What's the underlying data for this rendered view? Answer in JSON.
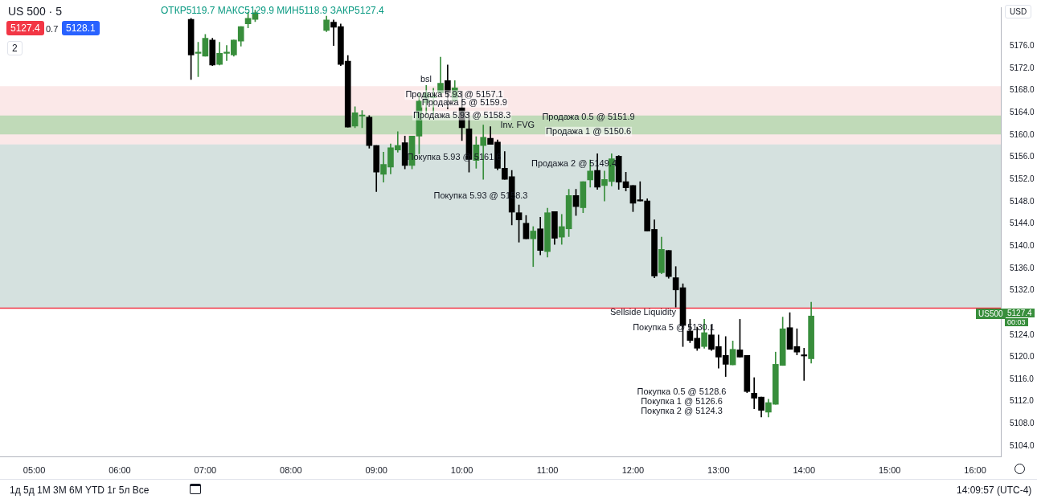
{
  "chart_data": {
    "type": "candlestick",
    "title": "US 500 · 5",
    "x": [
      6.8333,
      6.9167,
      7,
      7.0833,
      7.1667,
      7.25,
      7.3333,
      7.4167,
      7.5,
      7.5833,
      8.4167,
      8.5,
      8.5833,
      8.6667,
      8.75,
      8.8333,
      8.9167,
      9,
      9.0833,
      9.1667,
      9.25,
      9.3333,
      9.4167,
      9.5,
      9.5833,
      9.6667,
      9.75,
      9.8333,
      9.9167,
      10,
      10.0833,
      10.1667,
      10.25,
      10.3333,
      10.4167,
      10.5,
      10.5833,
      10.6667,
      10.75,
      10.8333,
      10.9167,
      11,
      11.0833,
      11.1667,
      11.25,
      11.3333,
      11.4167,
      11.5,
      11.5833,
      11.6667,
      11.75,
      11.8333,
      11.9167,
      12,
      12.0833,
      12.1667,
      12.25,
      12.3333,
      12.4167,
      12.5,
      12.5833,
      12.6667,
      12.75,
      12.8333,
      12.9167,
      13,
      13.0833,
      13.1667,
      13.25,
      13.3333,
      13.4167,
      13.5,
      13.5833,
      13.6667,
      13.75,
      13.8333,
      13.9167,
      14,
      14.0833
    ],
    "ohlc": [
      [
        5180.8,
        5181.0,
        5170.0,
        5174.4
      ],
      [
        5174.7,
        5176.7,
        5170.5,
        5174.7
      ],
      [
        5174.2,
        5178.1,
        5174.2,
        5177.4
      ],
      [
        5177.1,
        5177.4,
        5172.5,
        5172.6
      ],
      [
        5172.7,
        5176.7,
        5172.6,
        5174.7
      ],
      [
        5174.7,
        5176.1,
        5173.4,
        5174.7
      ],
      [
        5174.4,
        5177.1,
        5174.2,
        5177.1
      ],
      [
        5176.9,
        5179.5,
        5176.0,
        5179.5
      ],
      [
        5180.0,
        5182.1,
        5179.3,
        5181.0
      ],
      [
        5180.8,
        5182.5,
        5180.4,
        5182.0
      ],
      [
        5178.8,
        5181.4,
        5178.6,
        5180.7
      ],
      [
        5180.3,
        5180.7,
        5176.1,
        5179.4
      ],
      [
        5179.5,
        5180.0,
        5172.5,
        5172.7
      ],
      [
        5173.3,
        5174.3,
        5161.4,
        5161.4
      ],
      [
        5161.6,
        5165.1,
        5161.3,
        5164.0
      ],
      [
        5163.4,
        5164.4,
        5161.3,
        5163.4
      ],
      [
        5163.2,
        5163.5,
        5157.6,
        5158.1
      ],
      [
        5158.1,
        5158.1,
        5149.8,
        5153.3
      ],
      [
        5152.9,
        5156.9,
        5151.5,
        5154.7
      ],
      [
        5154.2,
        5158.4,
        5153.0,
        5157.7
      ],
      [
        5157.3,
        5160.6,
        5156.9,
        5158.1
      ],
      [
        5158.6,
        5159.8,
        5153.9,
        5154.5
      ],
      [
        5154.5,
        5159.8,
        5153.9,
        5159.8
      ],
      [
        5159.8,
        5167.5,
        5156.6,
        5166.1
      ],
      [
        5165.8,
        5168.9,
        5163.7,
        5167.6
      ],
      [
        5166.7,
        5168.4,
        5163.7,
        5167.0
      ],
      [
        5167.6,
        5174.0,
        5167.0,
        5169.3
      ],
      [
        5169.8,
        5172.6,
        5164.7,
        5167.6
      ],
      [
        5166.2,
        5169.8,
        5166.0,
        5168.5
      ],
      [
        5164.9,
        5167.9,
        5159.0,
        5161.3
      ],
      [
        5161.1,
        5164.1,
        5153.3,
        5155.6
      ],
      [
        5155.4,
        5159.7,
        5154.0,
        5158.2
      ],
      [
        5158.1,
        5161.8,
        5152.0,
        5159.6
      ],
      [
        5159.4,
        5161.5,
        5158.3,
        5158.3
      ],
      [
        5158.7,
        5159.1,
        5153.7,
        5154.0
      ],
      [
        5154.0,
        5157.0,
        5152.0,
        5152.0
      ],
      [
        5152.5,
        5153.6,
        5143.8,
        5146.1
      ],
      [
        5146.0,
        5147.4,
        5140.7,
        5144.7
      ],
      [
        5144.1,
        5145.5,
        5141.3,
        5141.3
      ],
      [
        5141.3,
        5143.5,
        5136.3,
        5142.7
      ],
      [
        5143.1,
        5145.2,
        5138.4,
        5139.2
      ],
      [
        5139.0,
        5146.8,
        5138.0,
        5146.0
      ],
      [
        5146.2,
        5146.2,
        5140.3,
        5141.4
      ],
      [
        5141.6,
        5145.7,
        5140.3,
        5143.5
      ],
      [
        5143.1,
        5150.2,
        5141.7,
        5149.1
      ],
      [
        5149.1,
        5150.2,
        5145.5,
        5147.1
      ],
      [
        5146.9,
        5151.6,
        5146.0,
        5151.6
      ],
      [
        5151.9,
        5155.5,
        5150.6,
        5153.5
      ],
      [
        5153.6,
        5156.6,
        5150.2,
        5150.6
      ],
      [
        5150.9,
        5153.5,
        5148.1,
        5152.0
      ],
      [
        5151.6,
        5156.6,
        5150.8,
        5155.7
      ],
      [
        5156.2,
        5156.3,
        5150.2,
        5151.5
      ],
      [
        5151.6,
        5153.3,
        5149.9,
        5150.5
      ],
      [
        5150.9,
        5150.9,
        5146.2,
        5147.7
      ],
      [
        5148.1,
        5151.6,
        5148.1,
        5148.1
      ],
      [
        5148.1,
        5148.5,
        5142.7,
        5142.7
      ],
      [
        5143.0,
        5144.7,
        5134.3,
        5134.6
      ],
      [
        5135.2,
        5141.6,
        5135.0,
        5139.4
      ],
      [
        5139.2,
        5139.2,
        5134.2,
        5134.5
      ],
      [
        5134.3,
        5136.3,
        5129.0,
        5132.1
      ],
      [
        5132.5,
        5133.2,
        5121.9,
        5125.7
      ],
      [
        5124.7,
        5126.8,
        5122.6,
        5123.0
      ],
      [
        5123.4,
        5125.4,
        5121.2,
        5121.6
      ],
      [
        5121.9,
        5126.8,
        5121.6,
        5124.4
      ],
      [
        5124.0,
        5125.8,
        5121.2,
        5121.4
      ],
      [
        5121.9,
        5124.0,
        5118.0,
        5120.0
      ],
      [
        5120.3,
        5123.7,
        5116.5,
        5118.7
      ],
      [
        5118.6,
        5122.9,
        5118.6,
        5121.4
      ],
      [
        5121.3,
        5126.8,
        5120.0,
        5120.0
      ],
      [
        5120.3,
        5120.3,
        5113.6,
        5113.8
      ],
      [
        5113.5,
        5116.3,
        5110.7,
        5112.6
      ],
      [
        5112.8,
        5112.8,
        5109.2,
        5110.4
      ],
      [
        5110.1,
        5112.4,
        5109.2,
        5111.8
      ],
      [
        5111.5,
        5120.9,
        5111.5,
        5118.7
      ],
      [
        5118.5,
        5127.2,
        5118.5,
        5125.1
      ],
      [
        5125.3,
        5128.0,
        5121.4,
        5121.4
      ],
      [
        5121.9,
        5125.1,
        5120.4,
        5120.9
      ],
      [
        5120.2,
        5121.6,
        5115.8,
        5120.2
      ],
      [
        5119.7,
        5129.9,
        5118.9,
        5127.4
      ]
    ],
    "colors": [
      "#000000",
      "#388e3c",
      "#388e3c",
      "#000000",
      "#388e3c",
      "#388e3c",
      "#388e3c",
      "#388e3c",
      "#388e3c",
      "#388e3c",
      "#388e3c",
      "#000000",
      "#000000",
      "#000000",
      "#388e3c",
      "#388e3c",
      "#000000",
      "#000000",
      "#388e3c",
      "#388e3c",
      "#388e3c",
      "#000000",
      "#388e3c",
      "#388e3c",
      "#388e3c",
      "#388e3c",
      "#388e3c",
      "#000000",
      "#388e3c",
      "#000000",
      "#000000",
      "#388e3c",
      "#388e3c",
      "#000000",
      "#000000",
      "#000000",
      "#000000",
      "#000000",
      "#000000",
      "#388e3c",
      "#000000",
      "#388e3c",
      "#000000",
      "#388e3c",
      "#388e3c",
      "#000000",
      "#388e3c",
      "#388e3c",
      "#000000",
      "#388e3c",
      "#388e3c",
      "#000000",
      "#000000",
      "#000000",
      "#000000",
      "#000000",
      "#000000",
      "#388e3c",
      "#000000",
      "#000000",
      "#000000",
      "#000000",
      "#000000",
      "#388e3c",
      "#000000",
      "#000000",
      "#000000",
      "#388e3c",
      "#000000",
      "#000000",
      "#000000",
      "#000000",
      "#388e3c",
      "#388e3c",
      "#388e3c",
      "#000000",
      "#000000",
      "#000000",
      "#388e3c"
    ],
    "xlim": [
      4.6,
      16.3
    ],
    "xticks": [
      {
        "value": 5,
        "label": "05:00"
      },
      {
        "value": 6,
        "label": "06:00"
      },
      {
        "value": 7,
        "label": "07:00"
      },
      {
        "value": 8,
        "label": "08:00"
      },
      {
        "value": 9,
        "label": "09:00"
      },
      {
        "value": 10,
        "label": "10:00"
      },
      {
        "value": 11,
        "label": "11:00"
      },
      {
        "value": 12,
        "label": "12:00"
      },
      {
        "value": 13,
        "label": "13:00"
      },
      {
        "value": 14,
        "label": "14:00"
      },
      {
        "value": 15,
        "label": "15:00"
      },
      {
        "value": 16,
        "label": "16:00"
      }
    ],
    "ylim": [
      5102,
      5183
    ],
    "yticks": [
      {
        "value": 5104,
        "label": "5104.0"
      },
      {
        "value": 5108,
        "label": "5108.0"
      },
      {
        "value": 5112,
        "label": "5112.0"
      },
      {
        "value": 5116,
        "label": "5116.0"
      },
      {
        "value": 5120,
        "label": "5120.0"
      },
      {
        "value": 5124,
        "label": "5124.0"
      },
      {
        "value": 5132,
        "label": "5132.0"
      },
      {
        "value": 5136,
        "label": "5136.0"
      },
      {
        "value": 5140,
        "label": "5140.0"
      },
      {
        "value": 5144,
        "label": "5144.0"
      },
      {
        "value": 5148,
        "label": "5148.0"
      },
      {
        "value": 5152,
        "label": "5152.0"
      },
      {
        "value": 5156,
        "label": "5156.0"
      },
      {
        "value": 5160,
        "label": "5160.0"
      },
      {
        "value": 5164,
        "label": "5164.0"
      },
      {
        "value": 5168,
        "label": "5168.0"
      },
      {
        "value": 5172,
        "label": "5172.0"
      },
      {
        "value": 5176,
        "label": "5176.0"
      }
    ],
    "ref_lines": [
      {
        "axis": "y",
        "value": 5128.8,
        "color": "#f23645"
      }
    ],
    "bands": [
      {
        "axis": "y",
        "from": 5158.3,
        "to": 5168.8,
        "color": "#f7d6d6"
      },
      {
        "axis": "y",
        "from": 5128.8,
        "to": 5158.3,
        "color": "#b2c8c4"
      },
      {
        "axis": "y",
        "from": 5160.1,
        "to": 5163.5,
        "label": "Inv. FVG",
        "color": "#8fce8f"
      }
    ],
    "annotations": [
      "ОТКР5119.7 МАКС5129.9 МИН5118.9 ЗАКР5127.4",
      "5127.4",
      "0.7",
      "5128.1",
      "2",
      "USD",
      "US500",
      "5127.4",
      "00:03",
      "1д 5д 1М 3М 6М YTD 1г 5л Все",
      "14:09:57 (UTC-4)",
      "Продажа 0.5 @ 5151.9",
      "Продажа 2 @ 5149.4",
      "Покупка 5.93 @ 5161.6",
      "Покупка 5.93 @ 5158.3",
      "Sellside Liquidity",
      "Покупка 5 @ 5130.1",
      "Покупка 0.5 @ 5128.6",
      "Покупка 1 @ 5126.6",
      "Покупка 2 @ 5124.3",
      {
        "text": "bsl",
        "x": 9.58,
        "y": 5170.0
      },
      {
        "text": "Продажа 5.93 @ 5157.1",
        "x": 9.91,
        "y": 5167.2
      },
      {
        "text": "Продажа 5 @ 5159.9",
        "x": 10.03,
        "y": 5165.8
      },
      {
        "text": "Продажа 5.93 @ 5158.3",
        "x": 10.0,
        "y": 5163.5
      },
      {
        "text": "Продажа 1 @ 5150.6",
        "x": 11.48,
        "y": 5160.6
      }
    ],
    "grid": false,
    "legend": false
  }
}
